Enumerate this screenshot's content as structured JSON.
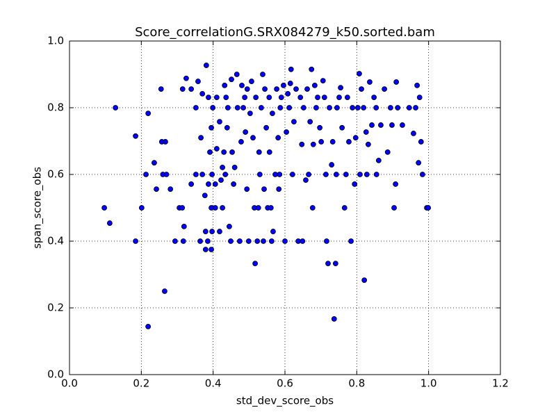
{
  "chart_data": {
    "type": "scatter",
    "title": "Score_correlationG.SRX084279_k50.sorted.bam",
    "x_label": "std_dev_score_obs",
    "y_label": "span_score_obs",
    "color": "#0000ff",
    "grid": true,
    "xlim": [
      0.0,
      1.2
    ],
    "ylim": [
      0.0,
      1.0
    ],
    "xticks": [
      {
        "value": 0,
        "label": "0.0"
      },
      0.2,
      0.4,
      0.6,
      0.8,
      {
        "value": 1,
        "label": "1.0"
      },
      1.2
    ],
    "yticks": [
      {
        "value": 0,
        "label": "0.0"
      },
      0.2,
      0.4,
      0.6,
      0.8,
      {
        "value": 1,
        "label": "1.0"
      }
    ],
    "x": [
      0.097,
      0.112,
      0.128,
      0.184,
      0.184,
      0.201,
      0.213,
      0.219,
      0.219,
      0.236,
      0.242,
      0.255,
      0.257,
      0.267,
      0.265,
      0.26,
      0.27,
      0.281,
      0.294,
      0.306,
      0.314,
      0.317,
      0.319,
      0.315,
      0.325,
      0.339,
      0.339,
      0.352,
      0.352,
      0.358,
      0.364,
      0.37,
      0.37,
      0.366,
      0.377,
      0.379,
      0.379,
      0.381,
      0.385,
      0.387,
      0.387,
      0.391,
      0.395,
      0.395,
      0.397,
      0.395,
      0.397,
      0.399,
      0.406,
      0.406,
      0.41,
      0.41,
      0.418,
      0.418,
      0.422,
      0.426,
      0.426,
      0.43,
      0.432,
      0.434,
      0.436,
      0.439,
      0.441,
      0.445,
      0.449,
      0.451,
      0.453,
      0.457,
      0.46,
      0.466,
      0.468,
      0.474,
      0.478,
      0.48,
      0.484,
      0.488,
      0.49,
      0.494,
      0.495,
      0.499,
      0.503,
      0.507,
      0.511,
      0.515,
      0.517,
      0.519,
      0.523,
      0.526,
      0.528,
      0.53,
      0.534,
      0.538,
      0.54,
      0.542,
      0.544,
      0.548,
      0.552,
      0.556,
      0.557,
      0.561,
      0.563,
      0.565,
      0.567,
      0.573,
      0.577,
      0.581,
      0.583,
      0.585,
      0.587,
      0.59,
      0.596,
      0.6,
      0.604,
      0.608,
      0.612,
      0.615,
      0.617,
      0.621,
      0.625,
      0.631,
      0.637,
      0.643,
      0.647,
      0.649,
      0.652,
      0.658,
      0.662,
      0.666,
      0.67,
      0.674,
      0.677,
      0.679,
      0.683,
      0.687,
      0.691,
      0.697,
      0.701,
      0.706,
      0.71,
      0.714,
      0.716,
      0.72,
      0.724,
      0.73,
      0.733,
      0.737,
      0.741,
      0.743,
      0.745,
      0.751,
      0.755,
      0.759,
      0.766,
      0.77,
      0.774,
      0.778,
      0.784,
      0.788,
      0.794,
      0.797,
      0.803,
      0.807,
      0.809,
      0.813,
      0.819,
      0.821,
      0.826,
      0.828,
      0.832,
      0.836,
      0.842,
      0.848,
      0.854,
      0.855,
      0.861,
      0.867,
      0.877,
      0.886,
      0.894,
      0.898,
      0.904,
      0.908,
      0.91,
      0.914,
      0.927,
      0.946,
      0.958,
      0.964,
      0.968,
      0.972,
      0.975,
      0.979,
      0.983,
      0.995,
      0.999
    ],
    "values": [
      0.5,
      0.454,
      0.8,
      0.715,
      0.4,
      0.5,
      0.6,
      0.783,
      0.144,
      0.635,
      0.556,
      0.856,
      0.698,
      0.698,
      0.25,
      0.6,
      0.6,
      0.556,
      0.4,
      0.5,
      0.5,
      0.4,
      0.444,
      0.856,
      0.888,
      0.856,
      0.571,
      0.6,
      0.8,
      0.879,
      0.4,
      0.842,
      0.6,
      0.71,
      0.537,
      0.375,
      0.429,
      0.927,
      0.4,
      0.831,
      0.571,
      0.667,
      0.74,
      0.375,
      0.429,
      0.5,
      0.6,
      0.8,
      0.5,
      0.571,
      0.677,
      0.831,
      0.429,
      0.758,
      0.583,
      0.5,
      0.621,
      0.667,
      0.867,
      0.6,
      0.831,
      0.74,
      0.8,
      0.444,
      0.4,
      0.885,
      0.667,
      0.571,
      0.621,
      0.9,
      0.8,
      0.4,
      0.698,
      0.867,
      0.8,
      0.831,
      0.727,
      0.556,
      0.856,
      0.4,
      0.783,
      0.879,
      0.71,
      0.5,
      0.333,
      0.831,
      0.4,
      0.5,
      0.667,
      0.6,
      0.8,
      0.9,
      0.4,
      0.556,
      0.856,
      0.74,
      0.5,
      0.831,
      0.667,
      0.5,
      0.4,
      0.783,
      0.429,
      0.6,
      0.856,
      0.71,
      0.556,
      0.6,
      0.8,
      0.831,
      0.867,
      0.4,
      0.727,
      0.842,
      0.8,
      0.873,
      0.915,
      0.6,
      0.758,
      0.856,
      0.4,
      0.831,
      0.69,
      0.4,
      0.8,
      0.583,
      0.856,
      0.6,
      0.758,
      0.915,
      0.5,
      0.69,
      0.867,
      0.8,
      0.831,
      0.74,
      0.698,
      0.881,
      0.831,
      0.6,
      0.4,
      0.333,
      0.8,
      0.629,
      0.698,
      0.167,
      0.333,
      0.6,
      0.8,
      0.831,
      0.86,
      0.74,
      0.5,
      0.6,
      0.831,
      0.698,
      0.4,
      0.8,
      0.571,
      0.71,
      0.8,
      0.902,
      0.6,
      0.856,
      0.8,
      0.283,
      0.727,
      0.6,
      0.69,
      0.877,
      0.748,
      0.831,
      0.8,
      0.6,
      0.642,
      0.748,
      0.856,
      0.667,
      0.8,
      0.748,
      0.5,
      0.571,
      0.877,
      0.8,
      0.748,
      0.8,
      0.723,
      0.8,
      0.867,
      0.635,
      0.831,
      0.698,
      0.6,
      0.5,
      0.5
    ]
  }
}
